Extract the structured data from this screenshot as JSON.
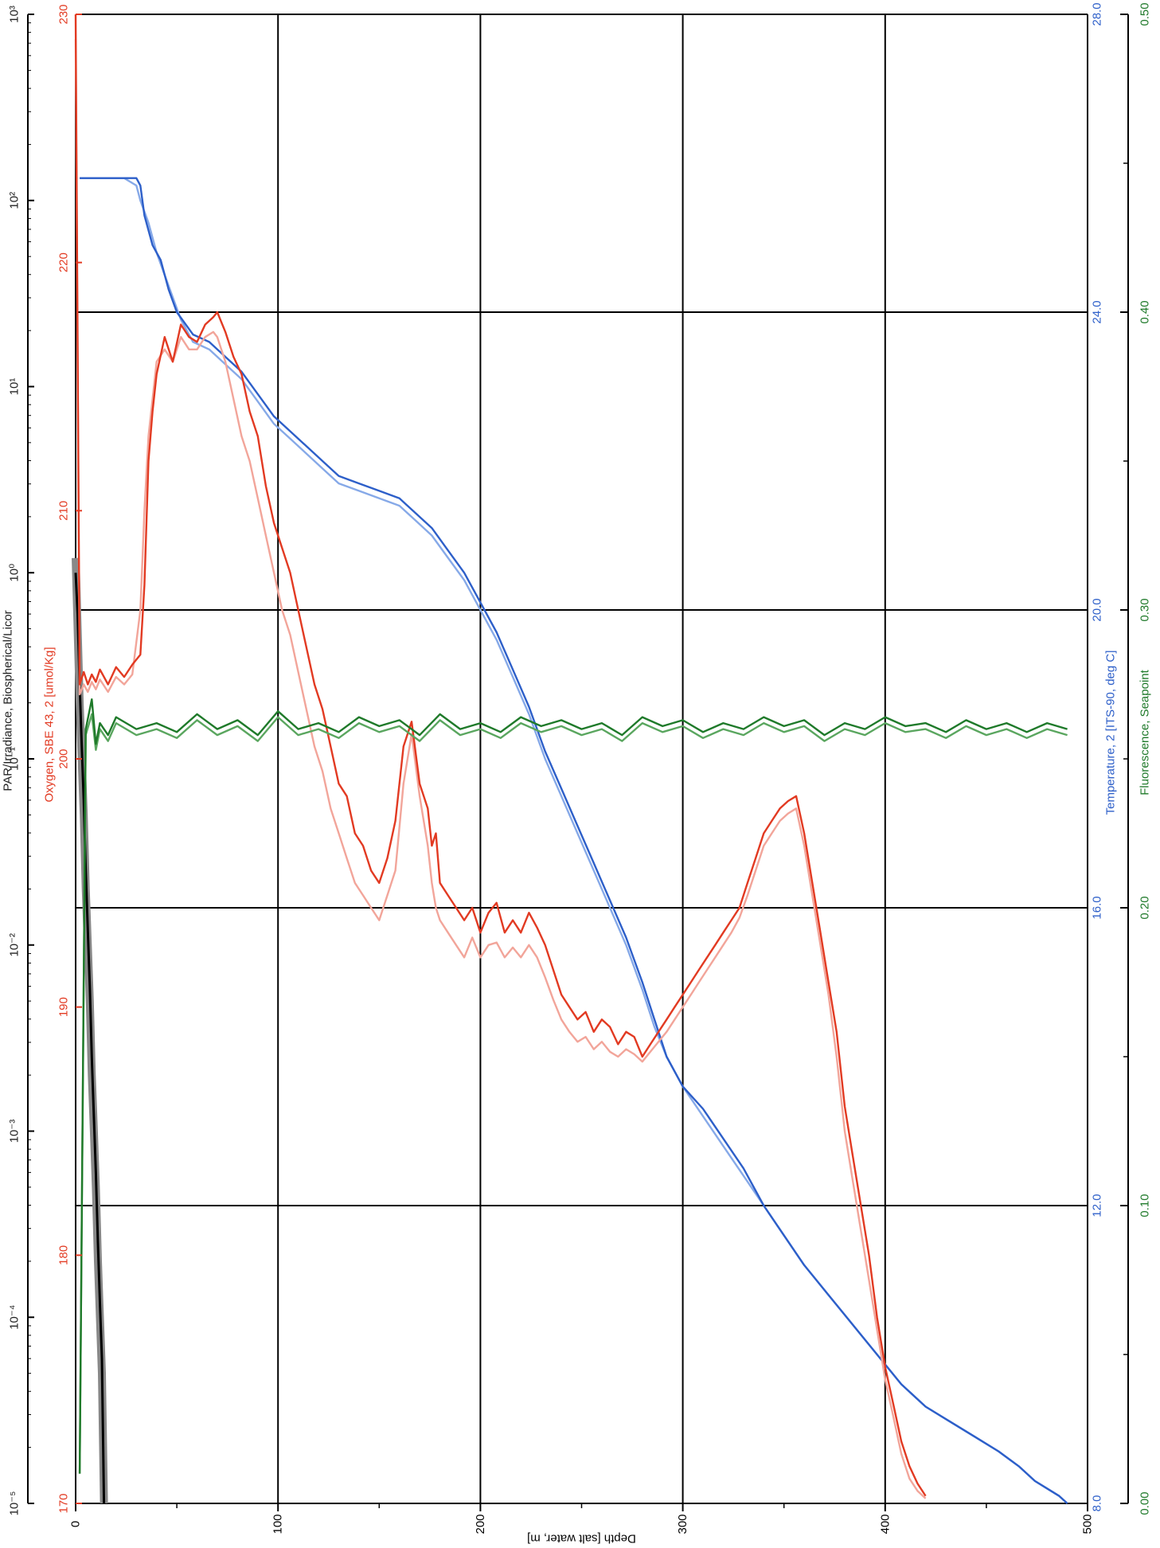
{
  "chart_data": {
    "type": "line",
    "orientation": "rotated-90",
    "grid": true,
    "colors": {
      "par": "#000000",
      "par_gray": "#888888",
      "oxygen": "#e23a22",
      "oxygen_light": "#f2a59a",
      "temperature": "#2d5fc9",
      "temperature_light": "#86a9e8",
      "fluorescence": "#1f7a2a",
      "fluorescence_light": "#5aa65f",
      "grid": "#000000"
    },
    "depth_axis": {
      "label": "Depth [salt water, m]",
      "range": [
        0,
        500
      ],
      "ticks": [
        "0",
        "100",
        "200",
        "300",
        "400",
        "500"
      ]
    },
    "par_axis": {
      "label": "PAR/Irradiance, Biospherical/Licor",
      "scale": "log",
      "range": [
        1e-05,
        1000
      ],
      "ticks": [
        "10⁻⁵",
        "10⁻⁴",
        "10⁻³",
        "10⁻²",
        "10⁻¹",
        "10⁰",
        "10¹",
        "10²",
        "10³"
      ]
    },
    "oxygen_axis": {
      "label": "Oxygen, SBE 43, 2 [umol/Kg]",
      "range": [
        170,
        230
      ],
      "ticks": [
        "170",
        "180",
        "190",
        "200",
        "210",
        "220",
        "230"
      ]
    },
    "temperature_axis": {
      "label": "Temperature, 2 [ITS-90, deg C]",
      "range": [
        8,
        28
      ],
      "ticks": [
        "8.0",
        "12.0",
        "16.0",
        "20.0",
        "24.0",
        "28.0"
      ]
    },
    "fluorescence_axis": {
      "label": "Fluorescence, Seapoint",
      "range": [
        0,
        0.5
      ],
      "ticks": [
        "0.00",
        "0.10",
        "0.20",
        "0.30",
        "0.40",
        "0.50"
      ]
    },
    "series": [
      {
        "axis": "temperature",
        "style": "dark",
        "depth": [
          2,
          12,
          24,
          30,
          32,
          34,
          38,
          42,
          46,
          50,
          58,
          66,
          74,
          82,
          90,
          98,
          106,
          114,
          122,
          130,
          140,
          150,
          160,
          168,
          176,
          184,
          192,
          200,
          208,
          216,
          224,
          232,
          240,
          248,
          256,
          264,
          272,
          280,
          286,
          292,
          300,
          310,
          320,
          330,
          340,
          350,
          360,
          372,
          384,
          396,
          408,
          420,
          432,
          444,
          456,
          466,
          474,
          480,
          486,
          490
        ],
        "values": [
          25.8,
          25.8,
          25.8,
          25.8,
          25.7,
          25.3,
          24.9,
          24.7,
          24.3,
          24.0,
          23.7,
          23.6,
          23.4,
          23.2,
          22.9,
          22.6,
          22.4,
          22.2,
          22.0,
          21.8,
          21.7,
          21.6,
          21.5,
          21.3,
          21.1,
          20.8,
          20.5,
          20.1,
          19.7,
          19.2,
          18.7,
          18.1,
          17.6,
          17.1,
          16.6,
          16.1,
          15.6,
          15.0,
          14.5,
          14.0,
          13.6,
          13.3,
          12.9,
          12.5,
          12.0,
          11.6,
          11.2,
          10.8,
          10.4,
          10.0,
          9.6,
          9.3,
          9.1,
          8.9,
          8.7,
          8.5,
          8.3,
          8.2,
          8.1,
          8.0
        ]
      },
      {
        "axis": "temperature",
        "style": "light",
        "depth": [
          2,
          12,
          24,
          30,
          32,
          36,
          40,
          44,
          48,
          52,
          58,
          66,
          74,
          82,
          90,
          98,
          106,
          114,
          122,
          130,
          140,
          150,
          160,
          168,
          176,
          184,
          192,
          200,
          208,
          216,
          224,
          232,
          240,
          248,
          256,
          264,
          272,
          280,
          286,
          292,
          300,
          310,
          320,
          330,
          340,
          350,
          360,
          372,
          384,
          396,
          408,
          420,
          432,
          444,
          456,
          466,
          474,
          480,
          486,
          490
        ],
        "values": [
          25.8,
          25.8,
          25.8,
          25.7,
          25.5,
          25.2,
          24.8,
          24.5,
          24.2,
          23.9,
          23.6,
          23.5,
          23.3,
          23.1,
          22.8,
          22.5,
          22.3,
          22.1,
          21.9,
          21.7,
          21.6,
          21.5,
          21.4,
          21.2,
          21.0,
          20.7,
          20.4,
          20.0,
          19.6,
          19.1,
          18.6,
          18.0,
          17.5,
          17.0,
          16.5,
          16.0,
          15.5,
          14.9,
          14.4,
          14.0,
          13.6,
          13.2,
          12.8,
          12.4,
          12.0,
          11.6,
          11.2,
          10.8,
          10.4,
          10.0,
          9.6,
          9.3,
          9.1,
          8.9,
          8.7,
          8.5,
          8.3,
          8.2,
          8.1,
          8.0
        ]
      },
      {
        "axis": "oxygen",
        "style": "dark",
        "depth": [
          0,
          2,
          4,
          6,
          8,
          10,
          12,
          16,
          20,
          24,
          28,
          32,
          34,
          36,
          38,
          40,
          44,
          48,
          52,
          56,
          60,
          64,
          68,
          70,
          74,
          78,
          82,
          86,
          90,
          94,
          98,
          102,
          106,
          110,
          114,
          118,
          122,
          126,
          130,
          134,
          138,
          142,
          146,
          150,
          154,
          158,
          162,
          166,
          170,
          174,
          176,
          178,
          180,
          184,
          188,
          192,
          196,
          200,
          204,
          208,
          212,
          216,
          220,
          224,
          228,
          232,
          236,
          240,
          244,
          248,
          252,
          256,
          260,
          264,
          268,
          272,
          276,
          280,
          284,
          288,
          292,
          296,
          300,
          304,
          308,
          312,
          316,
          320,
          324,
          328,
          332,
          336,
          340,
          344,
          348,
          352,
          356,
          360,
          364,
          368,
          372,
          376,
          380,
          384,
          388,
          392,
          396,
          400,
          404,
          408,
          412,
          416,
          420
        ],
        "values": [
          230.0,
          203.0,
          203.5,
          203.0,
          203.4,
          203.1,
          203.6,
          203.0,
          203.7,
          203.3,
          203.8,
          204.2,
          207.0,
          212.0,
          214.0,
          215.5,
          217.0,
          216.0,
          217.5,
          217.0,
          216.8,
          217.5,
          217.8,
          218.0,
          217.2,
          216.2,
          215.5,
          214.0,
          213.0,
          211.0,
          209.5,
          208.5,
          207.5,
          206.0,
          204.5,
          203.0,
          202.0,
          200.5,
          199.0,
          198.5,
          197.0,
          196.5,
          195.5,
          195.0,
          196.0,
          197.5,
          200.5,
          201.5,
          199.0,
          198.0,
          196.5,
          197.0,
          195.0,
          194.5,
          194.0,
          193.5,
          194.0,
          193.0,
          193.8,
          194.2,
          193.0,
          193.5,
          193.0,
          193.8,
          193.2,
          192.5,
          191.5,
          190.5,
          190.0,
          189.5,
          189.8,
          189.0,
          189.5,
          189.2,
          188.5,
          189.0,
          188.8,
          188.0,
          188.5,
          189.0,
          189.5,
          190.0,
          190.5,
          191.0,
          191.5,
          192.0,
          192.5,
          193.0,
          193.5,
          194.0,
          195.0,
          196.0,
          197.0,
          197.5,
          198.0,
          198.3,
          198.5,
          197.0,
          195.0,
          193.0,
          191.0,
          189.0,
          186.0,
          184.0,
          182.0,
          180.0,
          177.5,
          175.5,
          174.0,
          172.5,
          171.5,
          170.8,
          170.3
        ]
      },
      {
        "axis": "oxygen",
        "style": "light",
        "depth": [
          0,
          2,
          4,
          6,
          8,
          10,
          12,
          16,
          20,
          24,
          28,
          32,
          34,
          36,
          38,
          40,
          44,
          48,
          52,
          56,
          60,
          64,
          68,
          70,
          74,
          78,
          82,
          86,
          90,
          94,
          98,
          102,
          106,
          110,
          114,
          118,
          122,
          126,
          130,
          134,
          138,
          142,
          146,
          150,
          154,
          158,
          162,
          166,
          170,
          174,
          176,
          178,
          180,
          184,
          188,
          192,
          196,
          200,
          204,
          208,
          212,
          216,
          220,
          224,
          228,
          232,
          236,
          240,
          244,
          248,
          252,
          256,
          260,
          264,
          268,
          272,
          276,
          280,
          284,
          288,
          292,
          296,
          300,
          304,
          308,
          312,
          316,
          320,
          324,
          328,
          332,
          336,
          340,
          344,
          348,
          352,
          356,
          360,
          364,
          368,
          372,
          376,
          380,
          384,
          388,
          392,
          396,
          400,
          404,
          408,
          412,
          416,
          420
        ],
        "values": [
          229.0,
          202.6,
          203.0,
          202.7,
          203.1,
          202.8,
          203.2,
          202.7,
          203.3,
          203.0,
          203.4,
          206.0,
          210.0,
          213.0,
          214.5,
          216.0,
          216.5,
          216.0,
          217.0,
          216.5,
          216.5,
          217.0,
          217.2,
          217.0,
          216.0,
          214.5,
          213.0,
          212.0,
          210.5,
          209.0,
          207.5,
          206.0,
          205.0,
          203.5,
          202.0,
          200.5,
          199.5,
          198.0,
          197.0,
          196.0,
          195.0,
          194.5,
          194.0,
          193.5,
          194.5,
          195.5,
          199.0,
          201.0,
          198.5,
          196.5,
          195.0,
          194.0,
          193.5,
          193.0,
          192.5,
          192.0,
          192.8,
          192.0,
          192.5,
          192.6,
          192.0,
          192.4,
          192.0,
          192.5,
          192.0,
          191.2,
          190.3,
          189.5,
          189.0,
          188.6,
          188.8,
          188.3,
          188.6,
          188.2,
          188.0,
          188.3,
          188.1,
          187.8,
          188.2,
          188.6,
          189.0,
          189.5,
          190.0,
          190.5,
          191.0,
          191.5,
          192.0,
          192.5,
          193.0,
          193.6,
          194.5,
          195.5,
          196.5,
          197.0,
          197.5,
          197.8,
          198.0,
          196.5,
          194.5,
          192.5,
          190.5,
          188.0,
          185.0,
          183.0,
          181.0,
          179.0,
          177.0,
          175.0,
          173.5,
          172.0,
          171.0,
          170.5,
          170.2
        ]
      },
      {
        "axis": "fluorescence",
        "style": "dark",
        "depth": [
          2,
          5,
          8,
          10,
          12,
          16,
          20,
          30,
          40,
          50,
          60,
          70,
          80,
          90,
          100,
          110,
          120,
          130,
          140,
          150,
          160,
          170,
          180,
          190,
          200,
          210,
          220,
          230,
          240,
          250,
          260,
          270,
          280,
          290,
          300,
          310,
          320,
          330,
          340,
          350,
          360,
          370,
          380,
          390,
          400,
          410,
          420,
          430,
          440,
          450,
          460,
          470,
          480,
          490
        ],
        "values": [
          0.01,
          0.26,
          0.27,
          0.255,
          0.262,
          0.258,
          0.264,
          0.26,
          0.262,
          0.259,
          0.265,
          0.26,
          0.263,
          0.258,
          0.266,
          0.26,
          0.262,
          0.259,
          0.264,
          0.261,
          0.263,
          0.258,
          0.265,
          0.26,
          0.262,
          0.259,
          0.264,
          0.261,
          0.263,
          0.26,
          0.262,
          0.258,
          0.264,
          0.261,
          0.263,
          0.259,
          0.262,
          0.26,
          0.264,
          0.261,
          0.263,
          0.258,
          0.262,
          0.26,
          0.264,
          0.261,
          0.262,
          0.259,
          0.263,
          0.26,
          0.262,
          0.259,
          0.262,
          0.26
        ]
      },
      {
        "axis": "fluorescence",
        "style": "light",
        "depth": [
          2,
          5,
          8,
          10,
          12,
          16,
          20,
          30,
          40,
          50,
          60,
          70,
          80,
          90,
          100,
          110,
          120,
          130,
          140,
          150,
          160,
          170,
          180,
          190,
          200,
          210,
          220,
          230,
          240,
          250,
          260,
          270,
          280,
          290,
          300,
          310,
          320,
          330,
          340,
          350,
          360,
          370,
          380,
          390,
          400,
          410,
          420,
          430,
          440,
          450,
          460,
          470,
          480,
          490
        ],
        "values": [
          0.01,
          0.258,
          0.265,
          0.253,
          0.26,
          0.256,
          0.262,
          0.258,
          0.26,
          0.257,
          0.263,
          0.258,
          0.261,
          0.256,
          0.264,
          0.258,
          0.26,
          0.257,
          0.262,
          0.259,
          0.261,
          0.256,
          0.263,
          0.258,
          0.26,
          0.257,
          0.262,
          0.259,
          0.261,
          0.258,
          0.26,
          0.256,
          0.262,
          0.259,
          0.261,
          0.257,
          0.26,
          0.258,
          0.262,
          0.259,
          0.261,
          0.256,
          0.26,
          0.258,
          0.262,
          0.259,
          0.26,
          0.257,
          0.261,
          0.258,
          0.26,
          0.257,
          0.26,
          0.258
        ]
      },
      {
        "axis": "par",
        "style": "gray-band",
        "depth": [
          0,
          1,
          2,
          3,
          4,
          5,
          6,
          7,
          8,
          9,
          10,
          11,
          12,
          13,
          14
        ],
        "values": [
          1.2,
          0.5,
          0.2,
          0.1,
          0.05,
          0.02,
          0.01,
          0.005,
          0.002,
          0.001,
          0.0005,
          0.0002,
          0.0001,
          5e-05,
          1e-05
        ]
      },
      {
        "axis": "par",
        "style": "black",
        "depth": [
          0,
          1,
          2,
          3,
          4,
          5,
          6,
          7,
          8,
          9,
          10,
          11,
          12,
          13,
          14
        ],
        "values": [
          1.0,
          0.6,
          0.25,
          0.12,
          0.06,
          0.025,
          0.012,
          0.006,
          0.0025,
          0.0012,
          0.0006,
          0.00025,
          0.00012,
          6e-05,
          1e-05
        ]
      }
    ]
  }
}
